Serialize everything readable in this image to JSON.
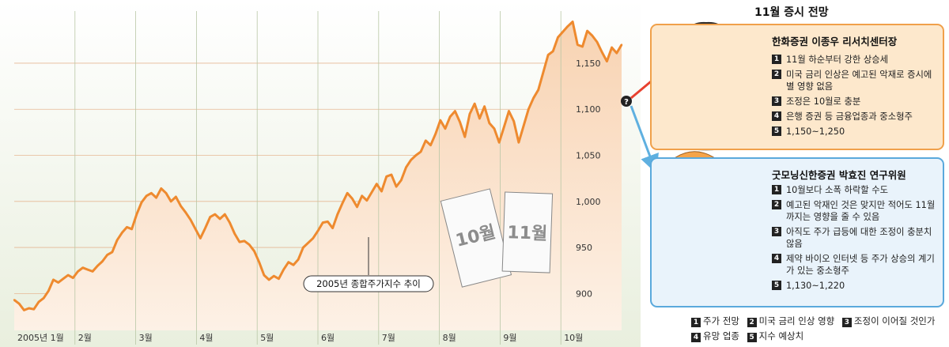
{
  "chart_data": {
    "type": "line",
    "series_label": "2005년 종합주가지수 추이",
    "x_labels": [
      "2005년 1월",
      "2월",
      "3월",
      "4월",
      "5월",
      "6월",
      "7월",
      "8월",
      "9월",
      "10월"
    ],
    "y_ticks": [
      "900",
      "950",
      "1,000",
      "1,050",
      "1,100",
      "1,150"
    ],
    "ylim": [
      860,
      1210
    ],
    "values": [
      893,
      889,
      882,
      884,
      883,
      891,
      895,
      903,
      915,
      912,
      916,
      920,
      917,
      924,
      928,
      926,
      924,
      930,
      935,
      942,
      945,
      958,
      966,
      972,
      970,
      986,
      999,
      1006,
      1009,
      1004,
      1014,
      1009,
      1000,
      1005,
      995,
      988,
      980,
      970,
      960,
      971,
      983,
      986,
      981,
      986,
      977,
      965,
      956,
      957,
      953,
      946,
      934,
      920,
      915,
      919,
      916,
      926,
      934,
      931,
      937,
      950,
      955,
      960,
      968,
      977,
      978,
      971,
      986,
      998,
      1009,
      1003,
      994,
      1006,
      1001,
      1010,
      1019,
      1011,
      1027,
      1029,
      1016,
      1023,
      1037,
      1045,
      1050,
      1054,
      1066,
      1061,
      1073,
      1088,
      1079,
      1092,
      1098,
      1086,
      1070,
      1095,
      1106,
      1090,
      1103,
      1085,
      1079,
      1064,
      1081,
      1098,
      1087,
      1064,
      1082,
      1100,
      1112,
      1121,
      1140,
      1159,
      1163,
      1178,
      1184,
      1190,
      1195,
      1170,
      1168,
      1185,
      1180,
      1173,
      1162,
      1152,
      1167,
      1161,
      1170
    ]
  },
  "annotation": {
    "label": "2005년 종합주가지수 추이"
  },
  "cards": {
    "october": "10월",
    "november": "11월"
  },
  "title": "11월 증시 전망",
  "panel_top": {
    "title": "한화증권 이종우 리서치센터장",
    "items": [
      "11월 하순부터 강한 상승세",
      "미국 금리 인상은 예고된 악재로 증시에 별 영향 없음",
      "조정은 10월로 충분",
      "은행 증권 등 금융업종과 중소형주",
      "1,150~1,250"
    ]
  },
  "panel_bottom": {
    "title": "굿모닝신한증권 박효진 연구위원",
    "items": [
      "10월보다 소폭 하락할 수도",
      "예고된 악재인 것은 맞지만 적어도 11월까지는 영향을 줄 수 있음",
      "아직도 주가 급등에 대한 조정이 충분치 않음",
      "제약 바이오 인터넷 등 주가 상승의 계기가 있는 중소형주",
      "1,130~1,220"
    ]
  },
  "legend": [
    "주가 전망",
    "미국 금리 인상 영향",
    "조정이 이어질 것인가",
    "유망 업종",
    "지수 예상치"
  ],
  "question_mark": "?",
  "colors": {
    "line": "#ee8a2f",
    "area": "#fbe4cf",
    "panel_top_bg": "#fde8cc",
    "panel_top_border": "#f0a04a",
    "panel_bottom_bg": "#e9f3fb",
    "panel_bottom_border": "#5aa9dc",
    "arrow_red": "#e8412f",
    "arrow_blue": "#5fb0e0"
  }
}
